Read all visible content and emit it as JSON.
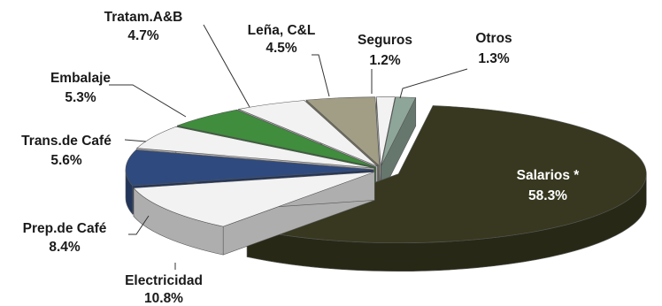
{
  "chart_data": {
    "type": "pie",
    "style": "3d-exploded",
    "title": "",
    "legend": "none",
    "slices": [
      {
        "label": "Salarios *",
        "value": 58.3,
        "value_label": "58.3%",
        "color": "#37381f",
        "label_inside": true
      },
      {
        "label": "Electricidad",
        "value": 10.8,
        "value_label": "10.8%",
        "color": "#f2f2f2"
      },
      {
        "label": "Prep.de Café",
        "value": 8.4,
        "value_label": "8.4%",
        "color": "#2f4a7e"
      },
      {
        "label": "Trans.de Café",
        "value": 5.6,
        "value_label": "5.6%",
        "color": "#f2f2f2"
      },
      {
        "label": "Embalaje",
        "value": 5.3,
        "value_label": "5.3%",
        "color": "#3f8d3d"
      },
      {
        "label": "Tratam.A&B",
        "value": 4.7,
        "value_label": "4.7%",
        "color": "#f2f2f2"
      },
      {
        "label": "Leña, C&L",
        "value": 4.5,
        "value_label": "4.5%",
        "color": "#a29e86"
      },
      {
        "label": "Seguros",
        "value": 1.2,
        "value_label": "1.2%",
        "color": "#f2f2f2"
      },
      {
        "label": "Otros",
        "value": 1.3,
        "value_label": "1.3%",
        "color": "#8ea699"
      }
    ]
  }
}
